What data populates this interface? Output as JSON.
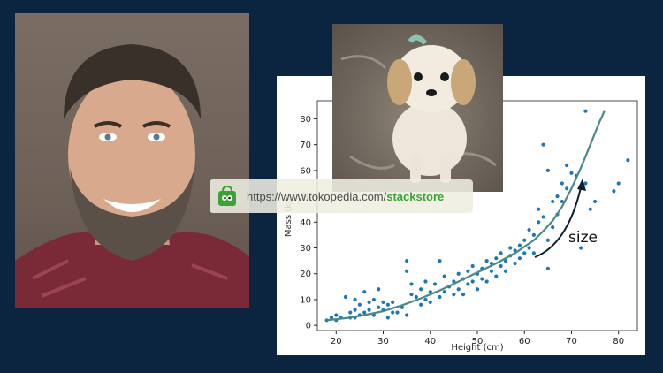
{
  "banner": {
    "url_prefix": "https://www.tokopedia.com/",
    "url_store": "stackstore",
    "accent_color": "#3aa335"
  },
  "chart_data": {
    "type": "scatter",
    "xlabel": "Height (cm)",
    "ylabel": "Mass (kg)",
    "xlim": [
      16,
      84
    ],
    "ylim": [
      -2,
      87
    ],
    "x_ticks": [
      20,
      30,
      40,
      50,
      60,
      70,
      80
    ],
    "y_ticks": [
      0,
      10,
      20,
      30,
      40,
      50,
      60,
      70,
      80
    ],
    "annotation": "size",
    "point_color": "#1f77b4",
    "curve_color": "#4a8a86",
    "points": [
      [
        18,
        2
      ],
      [
        19,
        3
      ],
      [
        20,
        4
      ],
      [
        20,
        2
      ],
      [
        21,
        3
      ],
      [
        22,
        11
      ],
      [
        23,
        3
      ],
      [
        23,
        5
      ],
      [
        24,
        6
      ],
      [
        24,
        3
      ],
      [
        24,
        10
      ],
      [
        25,
        8
      ],
      [
        25,
        4
      ],
      [
        26,
        5
      ],
      [
        26,
        13
      ],
      [
        27,
        6
      ],
      [
        27,
        9
      ],
      [
        28,
        10
      ],
      [
        28,
        4
      ],
      [
        29,
        7
      ],
      [
        29,
        14
      ],
      [
        30,
        9
      ],
      [
        30,
        6
      ],
      [
        31,
        8
      ],
      [
        31,
        3
      ],
      [
        32,
        9
      ],
      [
        32,
        5
      ],
      [
        33,
        5
      ],
      [
        34,
        7
      ],
      [
        35,
        4
      ],
      [
        35,
        25
      ],
      [
        35,
        21
      ],
      [
        36,
        12
      ],
      [
        36,
        16
      ],
      [
        37,
        11
      ],
      [
        38,
        8
      ],
      [
        38,
        14
      ],
      [
        39,
        10
      ],
      [
        39,
        17
      ],
      [
        40,
        13
      ],
      [
        40,
        9
      ],
      [
        41,
        16
      ],
      [
        42,
        25
      ],
      [
        42,
        11
      ],
      [
        43,
        13
      ],
      [
        43,
        19
      ],
      [
        44,
        15
      ],
      [
        45,
        12
      ],
      [
        45,
        17
      ],
      [
        46,
        14
      ],
      [
        46,
        20
      ],
      [
        47,
        18
      ],
      [
        47,
        12
      ],
      [
        48,
        16
      ],
      [
        48,
        21
      ],
      [
        49,
        17
      ],
      [
        49,
        23
      ],
      [
        50,
        20
      ],
      [
        50,
        14
      ],
      [
        51,
        22
      ],
      [
        51,
        18
      ],
      [
        52,
        25
      ],
      [
        52,
        17
      ],
      [
        53,
        24
      ],
      [
        53,
        21
      ],
      [
        54,
        19
      ],
      [
        54,
        26
      ],
      [
        55,
        23
      ],
      [
        55,
        28
      ],
      [
        56,
        25
      ],
      [
        56,
        21
      ],
      [
        57,
        27
      ],
      [
        57,
        30
      ],
      [
        58,
        24
      ],
      [
        58,
        29
      ],
      [
        59,
        31
      ],
      [
        59,
        26
      ],
      [
        60,
        28
      ],
      [
        60,
        33
      ],
      [
        61,
        30
      ],
      [
        61,
        37
      ],
      [
        62,
        35
      ],
      [
        62,
        28
      ],
      [
        63,
        40
      ],
      [
        63,
        45
      ],
      [
        64,
        42
      ],
      [
        64,
        70
      ],
      [
        65,
        33
      ],
      [
        65,
        22
      ],
      [
        65,
        60
      ],
      [
        66,
        38
      ],
      [
        66,
        48
      ],
      [
        67,
        43
      ],
      [
        67,
        50
      ],
      [
        68,
        55
      ],
      [
        68,
        48
      ],
      [
        69,
        53
      ],
      [
        69,
        62
      ],
      [
        70,
        59
      ],
      [
        71,
        58
      ],
      [
        72,
        30
      ],
      [
        73,
        55
      ],
      [
        73,
        83
      ],
      [
        74,
        45
      ],
      [
        75,
        48
      ],
      [
        79,
        52
      ],
      [
        80,
        55
      ],
      [
        82,
        64
      ]
    ],
    "curve": [
      [
        18,
        2
      ],
      [
        22,
        2.8
      ],
      [
        26,
        4
      ],
      [
        30,
        5.5
      ],
      [
        34,
        7.8
      ],
      [
        38,
        10.5
      ],
      [
        42,
        13.5
      ],
      [
        46,
        17
      ],
      [
        50,
        20.5
      ],
      [
        54,
        24
      ],
      [
        58,
        28
      ],
      [
        62,
        33
      ],
      [
        64,
        36.5
      ],
      [
        66,
        40.5
      ],
      [
        68,
        46
      ],
      [
        70,
        53
      ],
      [
        72,
        61
      ],
      [
        74,
        70
      ],
      [
        76,
        79
      ],
      [
        77,
        83
      ]
    ]
  }
}
